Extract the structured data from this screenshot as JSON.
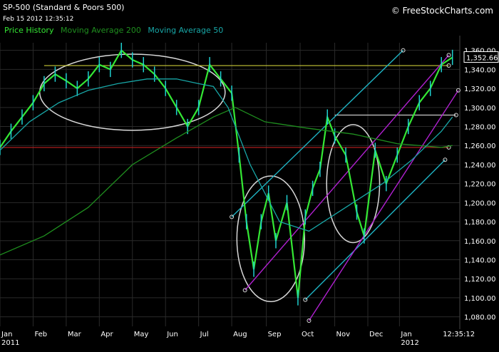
{
  "header": {
    "title": "SP-500 (Standard & Poors 500)",
    "timestamp": "Feb 15 2012 12:35:12",
    "brand": "© FreeStockCharts.com"
  },
  "legend": [
    {
      "label": "Price History",
      "color": "#34e834"
    },
    {
      "label": "Moving Average 200",
      "color": "#1f8f1f"
    },
    {
      "label": "Moving Average 50",
      "color": "#18a7a7"
    }
  ],
  "chart_data": {
    "type": "line",
    "title": "SP-500 (Standard & Poors 500)",
    "y_ticks": [
      "1,360.00",
      "1,340.00",
      "1,320.00",
      "1,300.00",
      "1,280.00",
      "1,260.00",
      "1,240.00",
      "1,220.00",
      "1,200.00",
      "1,180.00",
      "1,160.00",
      "1,140.00",
      "1,120.00",
      "1,100.00",
      "1,080.00"
    ],
    "ylim": [
      1070,
      1368
    ],
    "x_ticks": [
      "Jan",
      "Feb",
      "Mar",
      "Apr",
      "May",
      "Jun",
      "Jul",
      "Aug",
      "Sep",
      "Oct",
      "Nov",
      "Dec",
      "Jan",
      "12:35:12"
    ],
    "x_tick_sublabels": [
      "2011",
      "",
      "",
      "",
      "",
      "",
      "",
      "",
      "",
      "",
      "",
      "",
      "2012",
      ""
    ],
    "last_price": "1,352.66",
    "grid": true,
    "series": [
      {
        "name": "Price History",
        "color": "#34e834",
        "x": [
          0,
          15,
          30,
          45,
          60,
          75,
          90,
          105,
          120,
          135,
          150,
          165,
          180,
          195,
          210,
          225,
          240,
          255,
          270,
          285,
          300,
          315,
          325,
          335,
          345,
          355,
          365,
          375,
          390,
          405,
          415,
          425,
          435,
          445,
          455,
          470,
          485,
          495,
          510,
          525,
          540,
          555,
          570,
          585,
          600,
          615
        ],
        "values": [
          1258,
          1275,
          1290,
          1305,
          1325,
          1335,
          1328,
          1320,
          1330,
          1345,
          1340,
          1360,
          1350,
          1345,
          1335,
          1320,
          1300,
          1280,
          1300,
          1345,
          1330,
          1315,
          1250,
          1180,
          1130,
          1180,
          1210,
          1160,
          1200,
          1100,
          1185,
          1215,
          1235,
          1290,
          1270,
          1250,
          1190,
          1165,
          1255,
          1220,
          1250,
          1280,
          1305,
          1320,
          1345,
          1352.66
        ]
      },
      {
        "name": "Moving Average 200",
        "color": "#1f8f1f",
        "x": [
          0,
          60,
          120,
          180,
          240,
          290,
          320,
          360,
          420,
          480,
          540,
          600,
          615
        ],
        "values": [
          1145,
          1165,
          1195,
          1240,
          1268,
          1290,
          1300,
          1285,
          1278,
          1272,
          1262,
          1258,
          1260
        ]
      },
      {
        "name": "Moving Average 50",
        "color": "#18a7a7",
        "x": [
          0,
          40,
          80,
          120,
          160,
          200,
          240,
          270,
          290,
          310,
          340,
          380,
          420,
          460,
          490,
          520,
          560,
          600,
          615
        ],
        "values": [
          1255,
          1285,
          1305,
          1318,
          1325,
          1330,
          1330,
          1325,
          1322,
          1300,
          1240,
          1180,
          1170,
          1190,
          1205,
          1220,
          1245,
          1275,
          1290
        ]
      }
    ],
    "horizontal_lines": [
      {
        "value": 1344,
        "color": "#c9c936",
        "x": [
          60,
          610
        ]
      },
      {
        "value": 1258,
        "color": "#c02020",
        "x": [
          0,
          610
        ]
      },
      {
        "value": 1292,
        "color": "#c8c8c8",
        "x": [
          455,
          620
        ]
      }
    ],
    "trend_lines": [
      {
        "color": "#1fb4c4",
        "x": [
          315,
          548
        ],
        "values": [
          1185,
          1360
        ]
      },
      {
        "color": "#1fb4c4",
        "x": [
          415,
          605
        ],
        "values": [
          1098,
          1245
        ]
      },
      {
        "color": "#b020d0",
        "x": [
          333,
          610
        ],
        "values": [
          1108,
          1355
        ]
      },
      {
        "color": "#b020d0",
        "x": [
          420,
          623
        ],
        "values": [
          1076,
          1318
        ]
      }
    ],
    "ellipses": [
      {
        "cx": 180,
        "cy": 1316,
        "rx": 126,
        "ry": 40
      },
      {
        "cx": 368,
        "cy": 1162,
        "rx": 46,
        "ry": 66
      },
      {
        "cx": 480,
        "cy": 1220,
        "rx": 36,
        "ry": 62
      }
    ]
  }
}
